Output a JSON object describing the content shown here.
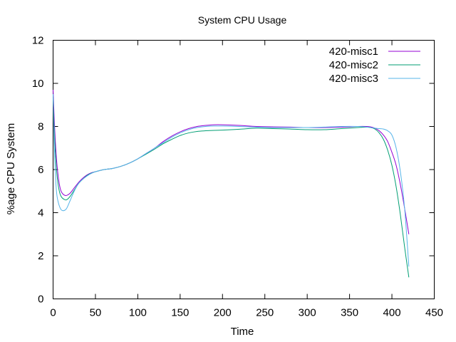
{
  "chart_data": {
    "type": "line",
    "title": "System CPU Usage",
    "xlabel": "Time",
    "ylabel": "%age CPU System",
    "xlim": [
      0,
      450
    ],
    "ylim": [
      0,
      12
    ],
    "xticks": [
      0,
      50,
      100,
      150,
      200,
      250,
      300,
      350,
      400,
      450
    ],
    "yticks": [
      0,
      2,
      4,
      6,
      8,
      10,
      12
    ],
    "grid": false,
    "legend": "top-right",
    "series": [
      {
        "name": "420-misc1",
        "color": "#9400d3",
        "x": [
          0,
          2,
          4,
          6,
          8,
          10,
          13,
          16,
          20,
          25,
          30,
          35,
          40,
          45,
          50,
          60,
          70,
          80,
          90,
          100,
          110,
          120,
          130,
          140,
          150,
          160,
          170,
          180,
          190,
          200,
          220,
          240,
          260,
          280,
          300,
          320,
          340,
          360,
          370,
          375,
          380,
          385,
          390,
          395,
          400,
          405,
          410,
          415,
          420
        ],
        "y": [
          9.7,
          7.8,
          6.5,
          5.7,
          5.2,
          4.95,
          4.82,
          4.8,
          4.9,
          5.15,
          5.4,
          5.6,
          5.75,
          5.85,
          5.9,
          6.0,
          6.05,
          6.15,
          6.3,
          6.5,
          6.75,
          7.0,
          7.3,
          7.55,
          7.75,
          7.9,
          8.0,
          8.05,
          8.08,
          8.08,
          8.05,
          8.0,
          7.98,
          7.97,
          7.95,
          7.95,
          7.97,
          8.0,
          8.0,
          7.98,
          7.92,
          7.8,
          7.6,
          7.3,
          6.8,
          6.2,
          5.3,
          4.2,
          3.0
        ]
      },
      {
        "name": "420-misc2",
        "color": "#009e73",
        "x": [
          0,
          2,
          4,
          6,
          8,
          10,
          13,
          16,
          20,
          25,
          30,
          35,
          40,
          45,
          50,
          60,
          70,
          80,
          90,
          100,
          110,
          120,
          130,
          140,
          150,
          160,
          170,
          180,
          190,
          200,
          220,
          240,
          260,
          280,
          300,
          320,
          340,
          360,
          370,
          375,
          380,
          385,
          390,
          395,
          400,
          405,
          410,
          415,
          420
        ],
        "y": [
          9.3,
          7.3,
          6.0,
          5.3,
          4.9,
          4.72,
          4.62,
          4.6,
          4.75,
          5.05,
          5.35,
          5.55,
          5.72,
          5.83,
          5.9,
          6.0,
          6.05,
          6.15,
          6.3,
          6.5,
          6.72,
          6.95,
          7.2,
          7.4,
          7.58,
          7.7,
          7.77,
          7.8,
          7.82,
          7.83,
          7.87,
          7.92,
          7.9,
          7.88,
          7.85,
          7.85,
          7.9,
          7.95,
          7.97,
          7.95,
          7.88,
          7.7,
          7.4,
          6.9,
          6.2,
          5.2,
          3.9,
          2.4,
          1.0
        ]
      },
      {
        "name": "420-misc3",
        "color": "#56b4e9",
        "x": [
          0,
          2,
          4,
          6,
          8,
          10,
          13,
          16,
          20,
          25,
          30,
          35,
          40,
          45,
          50,
          60,
          70,
          80,
          90,
          100,
          110,
          120,
          130,
          140,
          150,
          160,
          170,
          180,
          190,
          200,
          220,
          240,
          260,
          280,
          300,
          320,
          340,
          360,
          370,
          380,
          385,
          390,
          395,
          400,
          405,
          410,
          415,
          420
        ],
        "y": [
          9.5,
          6.4,
          5.0,
          4.5,
          4.25,
          4.12,
          4.1,
          4.2,
          4.55,
          5.0,
          5.35,
          5.55,
          5.7,
          5.82,
          5.9,
          6.0,
          6.05,
          6.15,
          6.3,
          6.5,
          6.75,
          7.0,
          7.25,
          7.5,
          7.7,
          7.85,
          7.95,
          8.0,
          8.02,
          8.02,
          8.0,
          7.97,
          7.95,
          7.95,
          7.95,
          7.97,
          8.0,
          8.0,
          7.97,
          7.92,
          7.9,
          7.88,
          7.8,
          7.6,
          7.0,
          5.9,
          4.2,
          1.5
        ]
      }
    ]
  }
}
